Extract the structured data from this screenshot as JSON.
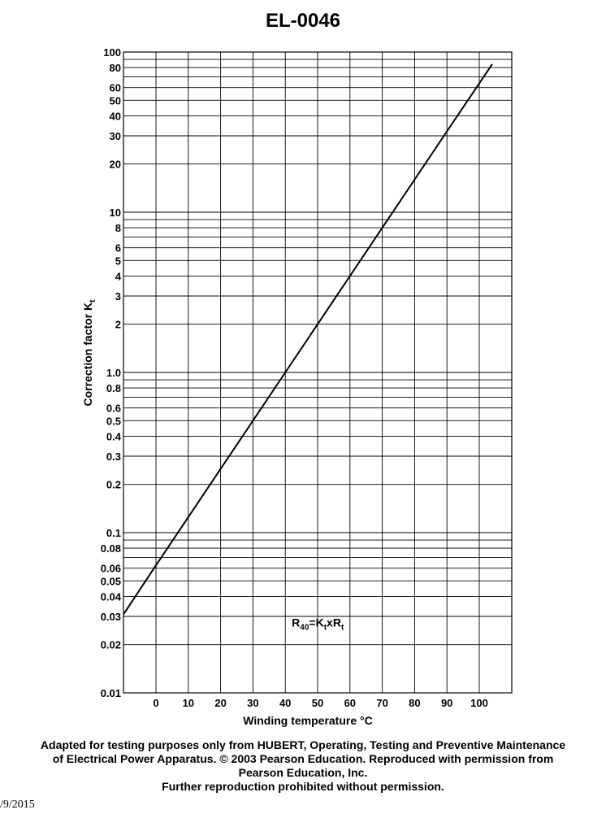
{
  "page": {
    "credit_lines": [
      "Adapted for testing purposes only from HUBERT, Operating, Testing and Preventive Maintenance",
      "of Electrical Power Apparatus. © 2003 Pearson Education. Reproduced with permission from",
      "Pearson Education, Inc.",
      "Further reproduction prohibited without permission."
    ],
    "footer_date": "/9/2015"
  },
  "chart_data": {
    "type": "line",
    "title": "EL-0046",
    "xlabel": "Winding temperature °C",
    "ylabel_main": "Correction factor K",
    "ylabel_sub": "t",
    "xlim": [
      -10,
      110
    ],
    "ylim": [
      0.01,
      100
    ],
    "yscale": "log",
    "grid": true,
    "x_ticks": [
      0,
      10,
      20,
      30,
      40,
      50,
      60,
      70,
      80,
      90,
      100
    ],
    "y_tick_labels": [
      "0.01",
      "0.02",
      "0.03",
      "0.04",
      "0.05",
      "0.06",
      "0.08",
      "0.1",
      "0.2",
      "0.3",
      "0.4",
      "0.5",
      "0.6",
      "0.8",
      "1.0",
      "2",
      "3",
      "4",
      "5",
      "6",
      "8",
      "10",
      "20",
      "30",
      "40",
      "50",
      "60",
      "80",
      "100"
    ],
    "annotation": {
      "text_r": "R",
      "sub_40": "40",
      "text_eq": "=K",
      "sub_t1": "t",
      "text_x": "xR",
      "sub_t2": "t"
    },
    "series": [
      {
        "x": [
          -10,
          0,
          10,
          20,
          30,
          40,
          50,
          60,
          70,
          80,
          90,
          104
        ],
        "y": [
          0.031,
          0.0625,
          0.125,
          0.25,
          0.5,
          1.0,
          2.0,
          4.0,
          8.0,
          16.0,
          32.0,
          84.0
        ]
      }
    ]
  }
}
